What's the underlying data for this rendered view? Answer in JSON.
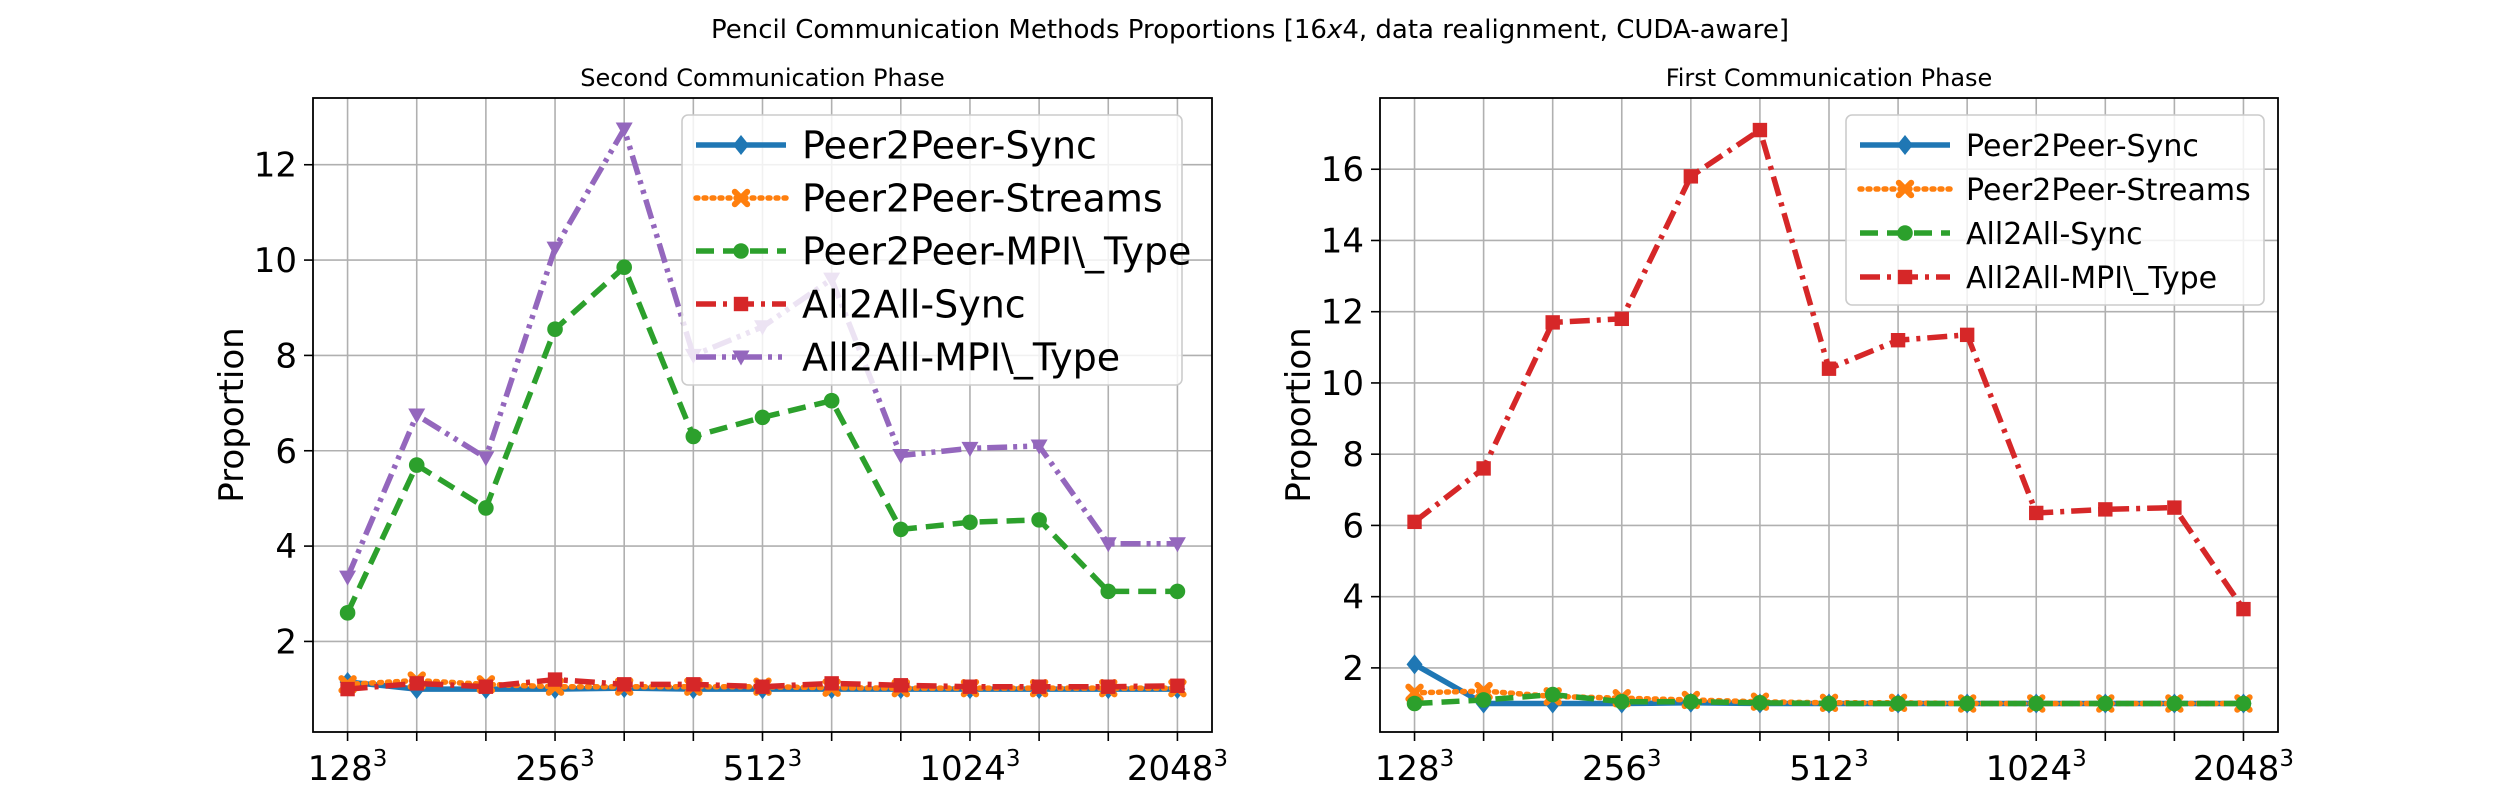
{
  "figure": {
    "suptitle": "Pencil Communication Methods Proportions [16x4, data realignment, CUDA-aware]",
    "suptitle_pre": "Pencil Communication Methods Proportions [16",
    "suptitle_x": "x",
    "suptitle_post": "4, data realignment, CUDA-aware]"
  },
  "chart_data": [
    {
      "type": "line",
      "title": "Second Communication Phase",
      "xlabel": "",
      "ylabel": "Proportion",
      "x_ticks": [
        {
          "base": "128",
          "exp": "3",
          "index": 0
        },
        {
          "base": "256",
          "exp": "3",
          "index": 3
        },
        {
          "base": "512",
          "exp": "3",
          "index": 6
        },
        {
          "base": "1024",
          "exp": "3",
          "index": 9
        },
        {
          "base": "2048",
          "exp": "3",
          "index": 12
        }
      ],
      "xlim": [
        -0.5,
        12.5
      ],
      "ylim": [
        0.1,
        13.4
      ],
      "yticks": [
        2,
        4,
        6,
        8,
        10,
        12
      ],
      "grid": true,
      "legend_position": "upper right",
      "series": [
        {
          "name": "Peer2Peer-Sync",
          "color": "#1f77b4",
          "marker": "diamond",
          "linestyle": "solid",
          "values": [
            1.15,
            1.0,
            1.0,
            1.0,
            1.02,
            1.0,
            1.0,
            1.0,
            1.0,
            1.0,
            1.0,
            1.0,
            1.0
          ]
        },
        {
          "name": "Peer2Peer-Streams",
          "color": "#ff7f0e",
          "marker": "x",
          "linestyle": "dotted",
          "values": [
            1.1,
            1.18,
            1.1,
            1.05,
            1.05,
            1.05,
            1.05,
            1.03,
            1.02,
            1.02,
            1.02,
            1.02,
            1.02
          ]
        },
        {
          "name": "Peer2Peer-MPI\\_Type",
          "color": "#2ca02c",
          "marker": "circle",
          "linestyle": "dashed",
          "values": [
            2.6,
            5.7,
            4.8,
            8.55,
            9.85,
            6.3,
            6.7,
            7.05,
            4.35,
            4.5,
            4.55,
            3.05,
            3.05
          ]
        },
        {
          "name": "All2All-Sync",
          "color": "#d62728",
          "marker": "square",
          "linestyle": "dashdot",
          "values": [
            1.0,
            1.12,
            1.05,
            1.2,
            1.1,
            1.1,
            1.05,
            1.12,
            1.08,
            1.05,
            1.05,
            1.05,
            1.07
          ]
        },
        {
          "name": "All2All-MPI\\_Type",
          "color": "#9467bd",
          "marker": "triangle-down",
          "linestyle": "dashdotdot",
          "values": [
            3.35,
            6.75,
            5.85,
            10.25,
            12.75,
            8.0,
            8.6,
            9.6,
            5.9,
            6.05,
            6.1,
            4.05,
            4.05
          ]
        }
      ]
    },
    {
      "type": "line",
      "title": "First Communication Phase",
      "xlabel": "",
      "ylabel": "Proportion",
      "x_ticks": [
        {
          "base": "128",
          "exp": "3",
          "index": 0
        },
        {
          "base": "256",
          "exp": "3",
          "index": 3
        },
        {
          "base": "512",
          "exp": "3",
          "index": 6
        },
        {
          "base": "1024",
          "exp": "3",
          "index": 9
        },
        {
          "base": "2048",
          "exp": "3",
          "index": 12
        }
      ],
      "xlim": [
        -0.5,
        12.5
      ],
      "ylim": [
        0.2,
        18.0
      ],
      "yticks": [
        2,
        4,
        6,
        8,
        10,
        12,
        14,
        16
      ],
      "grid": true,
      "legend_position": "upper right",
      "series": [
        {
          "name": "Peer2Peer-Sync",
          "color": "#1f77b4",
          "marker": "diamond",
          "linestyle": "solid",
          "values": [
            2.1,
            1.0,
            1.0,
            1.0,
            1.02,
            1.0,
            1.0,
            1.0,
            1.0,
            1.0,
            1.0,
            1.0,
            1.0
          ]
        },
        {
          "name": "Peer2Peer-Streams",
          "color": "#ff7f0e",
          "marker": "x",
          "linestyle": "dotted",
          "values": [
            1.3,
            1.35,
            1.2,
            1.15,
            1.1,
            1.05,
            1.02,
            1.02,
            1.0,
            1.0,
            1.0,
            1.0,
            1.0
          ]
        },
        {
          "name": "All2All-Sync",
          "color": "#2ca02c",
          "marker": "circle",
          "linestyle": "dashed",
          "values": [
            1.0,
            1.1,
            1.25,
            1.05,
            1.05,
            1.02,
            1.0,
            1.0,
            1.0,
            1.0,
            1.0,
            1.0,
            1.0
          ]
        },
        {
          "name": "All2All-MPI\\_Type",
          "color": "#d62728",
          "marker": "square",
          "linestyle": "dashdot",
          "values": [
            6.1,
            7.6,
            11.7,
            11.8,
            15.8,
            17.1,
            10.4,
            11.2,
            11.35,
            6.35,
            6.45,
            6.5,
            3.65
          ]
        }
      ]
    }
  ]
}
